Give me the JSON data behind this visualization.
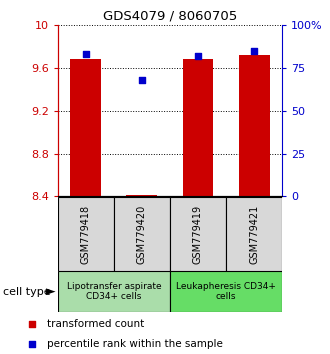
{
  "title": "GDS4079 / 8060705",
  "samples": [
    "GSM779418",
    "GSM779420",
    "GSM779419",
    "GSM779421"
  ],
  "red_values": [
    9.68,
    8.41,
    9.68,
    9.72
  ],
  "blue_percentiles": [
    83,
    68,
    82,
    85
  ],
  "ylim_left": [
    8.4,
    10.0
  ],
  "ylim_right": [
    0,
    100
  ],
  "yticks_left": [
    8.4,
    8.8,
    9.2,
    9.6,
    10.0
  ],
  "ytick_labels_left": [
    "8.4",
    "8.8",
    "9.2",
    "9.6",
    "10"
  ],
  "yticks_right": [
    0,
    25,
    50,
    75,
    100
  ],
  "ytick_labels_right": [
    "0",
    "25",
    "50",
    "75",
    "100%"
  ],
  "bar_bottom": 8.4,
  "bar_color": "#cc0000",
  "dot_color": "#0000cc",
  "grid_color": "#000000",
  "groups": [
    {
      "label": "Lipotransfer aspirate\nCD34+ cells",
      "samples": [
        0,
        1
      ],
      "color": "#99ee99"
    },
    {
      "label": "Leukapheresis CD34+\ncells",
      "samples": [
        2,
        3
      ],
      "color": "#66dd66"
    }
  ],
  "cell_type_label": "cell type",
  "legend_red": "transformed count",
  "legend_blue": "percentile rank within the sample",
  "bar_width": 0.55,
  "axis_left_color": "#cc0000",
  "axis_right_color": "#0000cc",
  "sample_box_color": "#d8d8d8",
  "group1_color": "#aaddaa",
  "group2_color": "#66dd66"
}
